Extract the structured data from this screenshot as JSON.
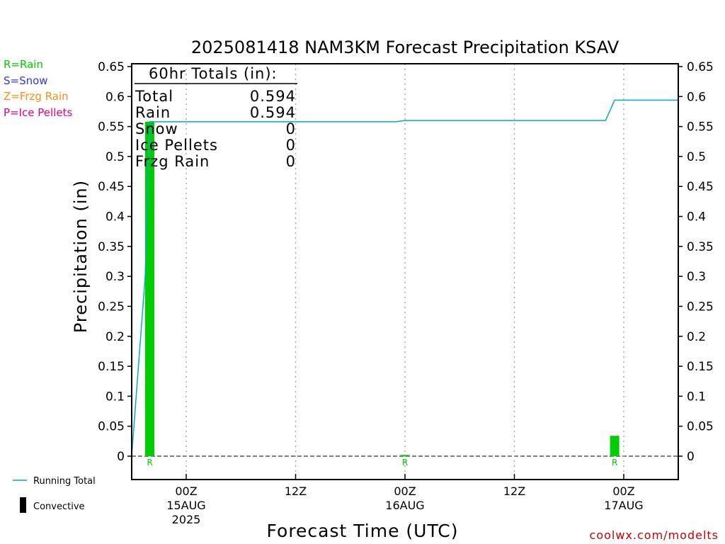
{
  "chart_data": {
    "type": "bar",
    "title": "2025081418 NAM3KM Forecast Precipitation KSAV",
    "xlabel": "Forecast Time (UTC)",
    "ylabel": "Precipitation (in)",
    "ylim": [
      -0.04,
      0.66
    ],
    "yticks": [
      0,
      0.05,
      0.1,
      0.15,
      0.2,
      0.25,
      0.3,
      0.35,
      0.4,
      0.45,
      0.5,
      0.55,
      0.6,
      0.65
    ],
    "ytick_labels": [
      "0",
      "0.05",
      "0.1",
      "0.15",
      "0.2",
      "0.25",
      "0.3",
      "0.35",
      "0.4",
      "0.45",
      "0.5",
      "0.55",
      "0.6",
      "0.65"
    ],
    "x_unit": "forecast hour",
    "xlim": [
      -1,
      60
    ],
    "xticks": [
      {
        "hour": 6,
        "line1": "00Z",
        "line2": "15AUG",
        "line3": "2025"
      },
      {
        "hour": 18,
        "line1": "12Z",
        "line2": "",
        "line3": ""
      },
      {
        "hour": 30,
        "line1": "00Z",
        "line2": "16AUG",
        "line3": ""
      },
      {
        "hour": 42,
        "line1": "12Z",
        "line2": "",
        "line3": ""
      },
      {
        "hour": 54,
        "line1": "00Z",
        "line2": "17AUG",
        "line3": ""
      }
    ],
    "bars": [
      {
        "hour": 2,
        "value": 0.558,
        "type_label": "R"
      },
      {
        "hour": 30,
        "value": 0.002,
        "type_label": "R"
      },
      {
        "hour": 53,
        "value": 0.034,
        "type_label": "R"
      }
    ],
    "running_total": {
      "name": "Running Total",
      "hours": [
        0,
        1.5,
        2,
        29,
        30,
        52,
        53,
        60
      ],
      "values": [
        0,
        0.3,
        0.558,
        0.558,
        0.56,
        0.56,
        0.594,
        0.594
      ]
    },
    "grid": "vertical dotted",
    "colors": {
      "rain": "#00cc00",
      "snow": "#3333ff",
      "frzg_rain": "#ff8c1a",
      "ice_pellets": "#e6007e",
      "running_total": "#00aacc",
      "convective": "#000000",
      "site": "#cc0000"
    }
  },
  "totals": {
    "heading": "60hr Totals (in):",
    "rows": [
      {
        "label": "Total",
        "value": "0.594"
      },
      {
        "label": "Rain",
        "value": "0.594"
      },
      {
        "label": "Snow",
        "value": "0"
      },
      {
        "label": "Ice Pellets",
        "value": "0"
      },
      {
        "label": "Frzg Rain",
        "value": "0"
      }
    ]
  },
  "type_key": {
    "rain": "R=Rain",
    "snow": "S=Snow",
    "frzg_rain": "Z=Frzg Rain",
    "ice_pellets": "P=Ice Pellets"
  },
  "legend": {
    "running_total": "Running Total",
    "convective": "Convective"
  },
  "site": "coolwx.com/modelts"
}
